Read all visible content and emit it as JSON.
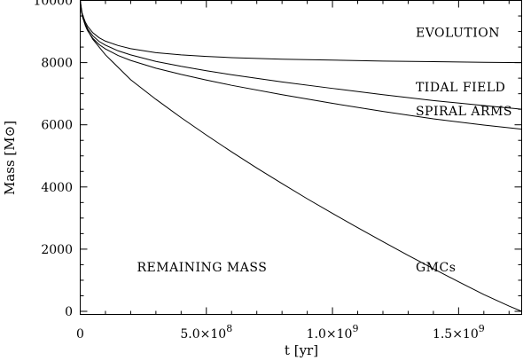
{
  "chart_data": {
    "type": "line",
    "title": "",
    "xlabel": "t [yr]",
    "ylabel": "Mass  [M⊙]",
    "xlim": [
      0,
      1750000000
    ],
    "ylim": [
      -100,
      10000
    ],
    "grid": false,
    "legend": "none",
    "x_ticks": [
      {
        "value": 0,
        "label": "0"
      },
      {
        "value": 500000000,
        "label": "5.0×10",
        "exp": "8"
      },
      {
        "value": 1000000000,
        "label": "1.0×10",
        "exp": "9"
      },
      {
        "value": 1500000000,
        "label": "1.5×10",
        "exp": "9"
      }
    ],
    "y_ticks": [
      {
        "value": 0,
        "label": "0"
      },
      {
        "value": 2000,
        "label": "2000"
      },
      {
        "value": 4000,
        "label": "4000"
      },
      {
        "value": 6000,
        "label": "6000"
      },
      {
        "value": 8000,
        "label": "8000"
      },
      {
        "value": 10000,
        "label": "10000"
      }
    ],
    "annotations": [
      {
        "text": "EVOLUTION",
        "x": 1330000000,
        "y": 8830
      },
      {
        "text": "TIDAL FIELD",
        "x": 1330000000,
        "y": 7070
      },
      {
        "text": "SPIRAL ARMS",
        "x": 1330000000,
        "y": 6300
      },
      {
        "text": "GMCs",
        "x": 1330000000,
        "y": 1280
      },
      {
        "text": "REMAINING MASS",
        "x": 225000000,
        "y": 1280
      }
    ],
    "series": [
      {
        "x": [
          0,
          5000000,
          10000000,
          20000000,
          30000000,
          50000000,
          75000000,
          100000000,
          150000000,
          200000000,
          300000000,
          400000000,
          500000000,
          600000000,
          800000000,
          1000000000,
          1200000000,
          1400000000,
          1600000000,
          1750000000
        ],
        "y": [
          10000,
          9680,
          9520,
          9310,
          9160,
          8960,
          8800,
          8690,
          8550,
          8450,
          8320,
          8250,
          8200,
          8160,
          8110,
          8080,
          8050,
          8030,
          8010,
          8000
        ]
      },
      {
        "x": [
          0,
          5000000,
          10000000,
          20000000,
          30000000,
          50000000,
          75000000,
          100000000,
          150000000,
          200000000,
          300000000,
          400000000,
          500000000,
          600000000,
          800000000,
          1000000000,
          1200000000,
          1400000000,
          1600000000,
          1750000000
        ],
        "y": [
          10000,
          9650,
          9480,
          9250,
          9080,
          8860,
          8680,
          8560,
          8380,
          8250,
          8040,
          7880,
          7740,
          7610,
          7380,
          7170,
          6970,
          6780,
          6620,
          6500
        ]
      },
      {
        "x": [
          0,
          5000000,
          10000000,
          20000000,
          30000000,
          50000000,
          75000000,
          100000000,
          150000000,
          200000000,
          300000000,
          400000000,
          500000000,
          600000000,
          800000000,
          1000000000,
          1200000000,
          1400000000,
          1600000000,
          1750000000
        ],
        "y": [
          10000,
          9630,
          9450,
          9200,
          9020,
          8780,
          8580,
          8440,
          8230,
          8070,
          7820,
          7620,
          7440,
          7270,
          6970,
          6690,
          6430,
          6190,
          5990,
          5860
        ]
      },
      {
        "x": [
          0,
          10000000,
          25000000,
          50000000,
          100000000,
          150000000,
          200000000,
          300000000,
          400000000,
          500000000,
          600000000,
          700000000,
          800000000,
          900000000,
          1000000000,
          1100000000,
          1200000000,
          1300000000,
          1400000000,
          1500000000,
          1600000000,
          1700000000,
          1750000000
        ],
        "y": [
          10000,
          9450,
          9100,
          8750,
          8250,
          7850,
          7450,
          6820,
          6230,
          5670,
          5130,
          4610,
          4110,
          3620,
          3150,
          2690,
          2240,
          1800,
          1370,
          950,
          540,
          170,
          0
        ]
      }
    ]
  }
}
